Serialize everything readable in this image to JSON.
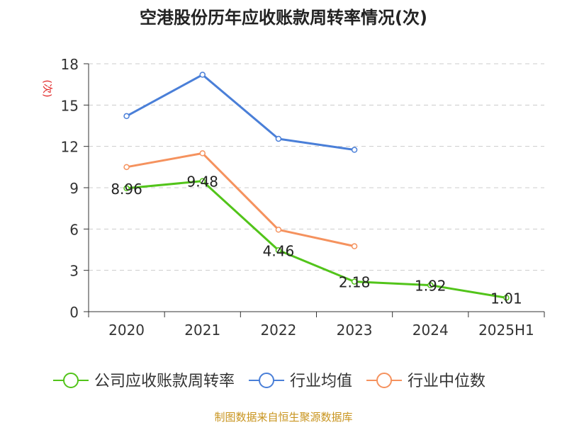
{
  "chart_data": {
    "type": "line",
    "title": "空港股份历年应收账款周转率情况(次)",
    "ylabel": "(次)",
    "xlabel": "",
    "categories": [
      "2020",
      "2021",
      "2022",
      "2023",
      "2024",
      "2025H1"
    ],
    "ylim": [
      0,
      18
    ],
    "yticks": [
      0,
      3,
      6,
      9,
      12,
      15,
      18
    ],
    "grid": true,
    "legend_position": "bottom",
    "series": [
      {
        "name": "公司应收账款周转率",
        "color": "#52c41a",
        "values": [
          8.96,
          9.48,
          4.46,
          2.18,
          1.92,
          1.01
        ],
        "labels": [
          "8.96",
          "9.48",
          "4.46",
          "2.18",
          "1.92",
          "1.01"
        ]
      },
      {
        "name": "行业均值",
        "color": "#4a7fd8",
        "values": [
          14.2,
          17.2,
          12.55,
          11.75,
          null,
          null
        ]
      },
      {
        "name": "行业中位数",
        "color": "#f5925e",
        "values": [
          10.5,
          11.5,
          5.95,
          4.75,
          null,
          null
        ]
      }
    ]
  },
  "source": "制图数据来自恒生聚源数据库",
  "colors": {
    "title": "#222222",
    "ylabel": "#e02020",
    "source": "#c8941e",
    "axis": "#333333",
    "grid": "#cccccc"
  }
}
